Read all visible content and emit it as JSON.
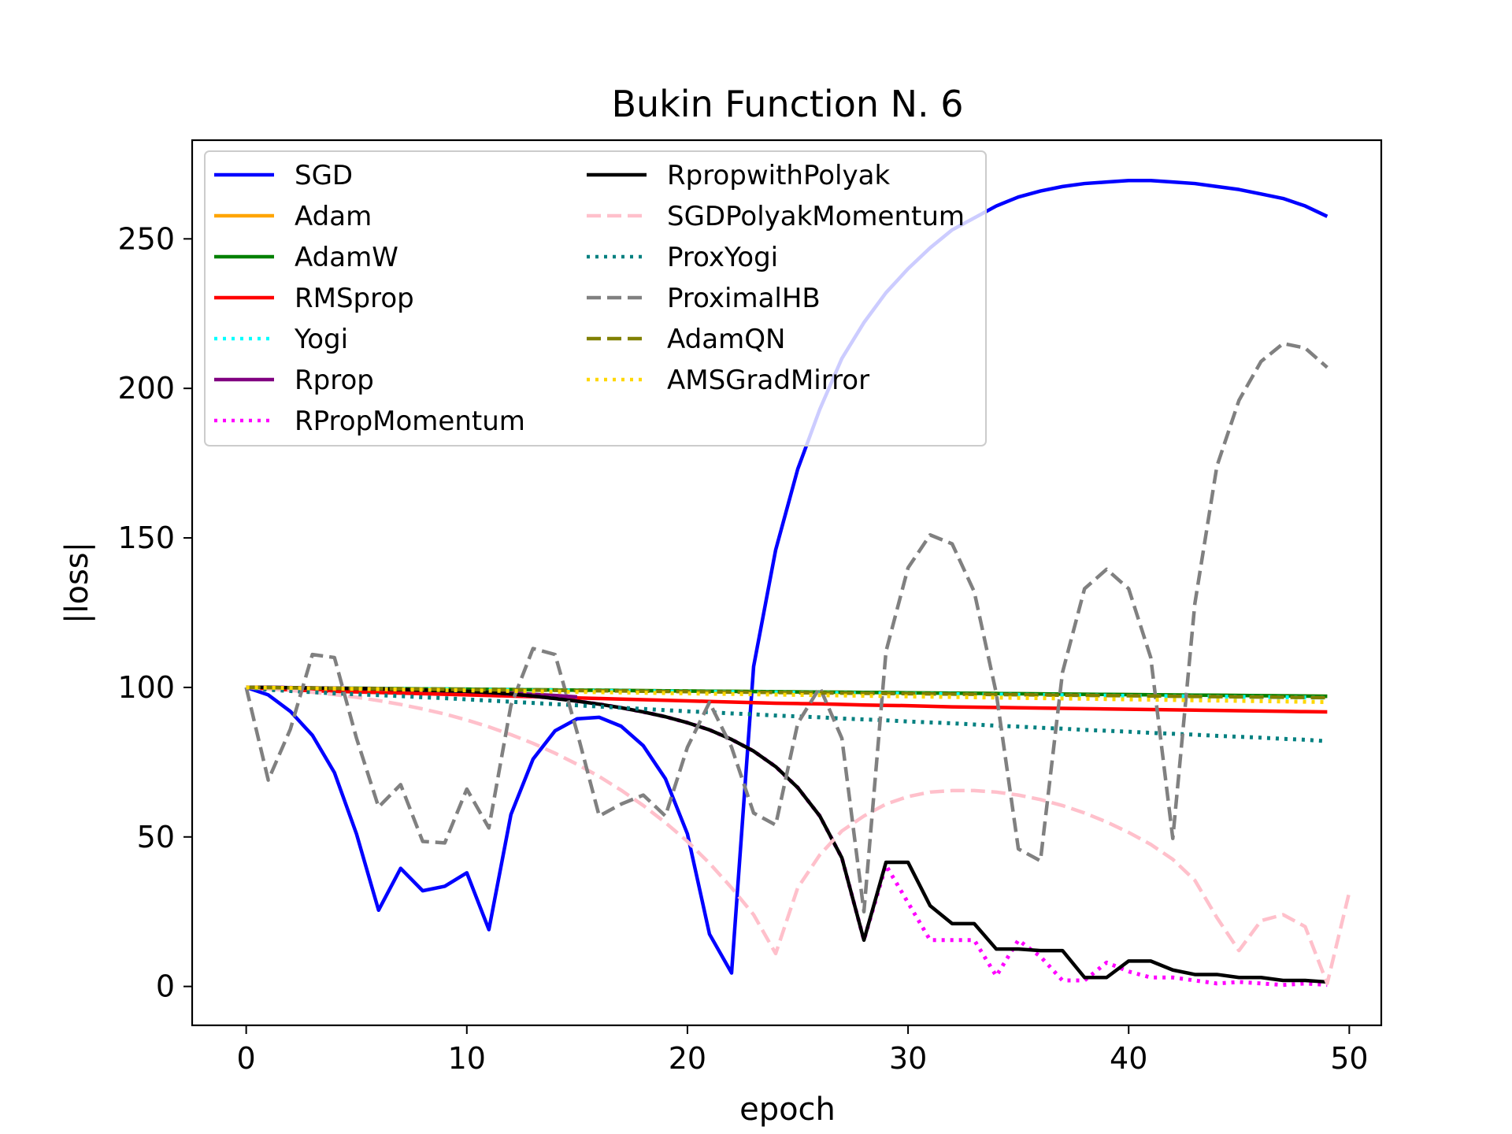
{
  "chart_data": {
    "type": "line",
    "title": "Bukin Function N. 6",
    "xlabel": "epoch",
    "ylabel": "|loss|",
    "xlim": [
      -2.45,
      51.45
    ],
    "ylim": [
      -13,
      283
    ],
    "xticks": [
      0,
      10,
      20,
      30,
      40,
      50
    ],
    "yticks": [
      0,
      50,
      100,
      150,
      200,
      250
    ],
    "grid": false,
    "legend_position": "top-left",
    "legend_columns": 2,
    "series": [
      {
        "name": "SGD",
        "color": "#0000ff",
        "style": "solid",
        "values": [
          100,
          97.5,
          92,
          84,
          71.5,
          51,
          25.5,
          39.5,
          32,
          33.5,
          38,
          19,
          57.5,
          76,
          85.5,
          89.5,
          90,
          87,
          80.5,
          69.5,
          51,
          17.5,
          4.5,
          107,
          146,
          173,
          193,
          210,
          222,
          232,
          240,
          247,
          253,
          257,
          261,
          264,
          266,
          267.5,
          268.5,
          269,
          269.5,
          269.5,
          269,
          268.5,
          267.5,
          266.5,
          265,
          263.5,
          261,
          257.5
        ]
      },
      {
        "name": "Adam",
        "color": "#ffa500",
        "style": "solid",
        "values": [
          100,
          99.94,
          99.88,
          99.82,
          99.76,
          99.7,
          99.64,
          99.58,
          99.52,
          99.46,
          99.4,
          99.34,
          99.28,
          99.22,
          99.16,
          99.1,
          99.04,
          98.98,
          98.92,
          98.86,
          98.8,
          98.74,
          98.68,
          98.62,
          98.56,
          98.5,
          98.44,
          98.38,
          98.32,
          98.26,
          98.2,
          98.14,
          98.08,
          98.02,
          97.96,
          97.9,
          97.84,
          97.78,
          97.72,
          97.66,
          97.6,
          97.54,
          97.48,
          97.42,
          97.36,
          97.3,
          97.24,
          97.18,
          97.12,
          97.06
        ]
      },
      {
        "name": "AdamW",
        "color": "#008000",
        "style": "solid",
        "values": [
          100,
          99.94,
          99.88,
          99.82,
          99.76,
          99.7,
          99.64,
          99.58,
          99.52,
          99.46,
          99.4,
          99.34,
          99.28,
          99.22,
          99.16,
          99.1,
          99.04,
          98.98,
          98.92,
          98.86,
          98.8,
          98.74,
          98.68,
          98.62,
          98.56,
          98.5,
          98.44,
          98.38,
          98.32,
          98.26,
          98.2,
          98.14,
          98.08,
          98.02,
          97.96,
          97.9,
          97.84,
          97.78,
          97.72,
          97.66,
          97.6,
          97.54,
          97.48,
          97.42,
          97.36,
          97.3,
          97.24,
          97.18,
          97.12,
          97.06
        ]
      },
      {
        "name": "RMSprop",
        "color": "#ff0000",
        "style": "solid",
        "values": [
          100,
          99.5,
          99.2,
          98.9,
          98.7,
          98.5,
          98.3,
          98.1,
          97.9,
          97.7,
          97.5,
          97.3,
          97.1,
          96.9,
          96.7,
          96.5,
          96.3,
          96.1,
          95.9,
          95.7,
          95.5,
          95.3,
          95.1,
          94.9,
          94.7,
          94.6,
          94.5,
          94.3,
          94.1,
          94,
          93.9,
          93.7,
          93.5,
          93.4,
          93.3,
          93.2,
          93.1,
          93,
          92.9,
          92.8,
          92.7,
          92.6,
          92.5,
          92.4,
          92.3,
          92.2,
          92.1,
          92,
          91.9,
          91.8
        ]
      },
      {
        "name": "Yogi",
        "color": "#00ffff",
        "style": "dotted",
        "values": [
          100,
          99.93,
          99.86,
          99.79,
          99.72,
          99.65,
          99.58,
          99.51,
          99.44,
          99.37,
          99.3,
          99.23,
          99.16,
          99.09,
          99.02,
          98.95,
          98.88,
          98.81,
          98.74,
          98.67,
          98.6,
          98.53,
          98.46,
          98.39,
          98.32,
          98.25,
          98.18,
          98.11,
          98.04,
          97.97,
          97.9,
          97.83,
          97.76,
          97.69,
          97.62,
          97.55,
          97.48,
          97.41,
          97.34,
          97.27,
          97.2,
          97.13,
          97.06,
          96.99,
          96.92,
          96.85,
          96.78,
          96.71,
          96.64,
          96.57
        ]
      },
      {
        "name": "Rprop",
        "color": "#800080",
        "style": "solid",
        "values": [
          100,
          100,
          99.9,
          99.8,
          99.7,
          99.6,
          99.5,
          99.3,
          99.1,
          98.9,
          98.7,
          98.4,
          98.1,
          97.7,
          97.3,
          96.8
        ]
      },
      {
        "name": "RPropMomentum",
        "color": "#ff00ff",
        "style": "dotted",
        "values": [
          100,
          100,
          99.9,
          99.8,
          99.7,
          99.6,
          99.5,
          99.3,
          99.1,
          98.9,
          98.7,
          98.3,
          97.8,
          97.1,
          96.3,
          95.4,
          94.4,
          93.2,
          91.8,
          90.2,
          88.2,
          85.8,
          82.6,
          78.7,
          73.5,
          66.5,
          57,
          43,
          15.5,
          40.5,
          28,
          15.5,
          15.5,
          15.5,
          3.5,
          15.5,
          10,
          2,
          2,
          8,
          5,
          3,
          3,
          2,
          1,
          1.5,
          1,
          0.5,
          1,
          0.5
        ]
      },
      {
        "name": "RpropwithPolyak",
        "color": "#000000",
        "style": "solid",
        "values": [
          100,
          100,
          99.9,
          99.8,
          99.7,
          99.6,
          99.5,
          99.3,
          99.1,
          98.9,
          98.7,
          98.3,
          97.8,
          97.1,
          96.3,
          95.4,
          94.4,
          93.2,
          91.8,
          90.2,
          88.2,
          85.8,
          82.6,
          78.7,
          73.5,
          66.5,
          57,
          43,
          15.5,
          41.5,
          41.5,
          27,
          21,
          21,
          12.5,
          12.5,
          12,
          12,
          3,
          3,
          8.5,
          8.5,
          5.5,
          4,
          4,
          3,
          3,
          2,
          2,
          1.5
        ]
      },
      {
        "name": "SGDPolyakMomentum",
        "color": "#ffc0cb",
        "style": "dashed",
        "values": [
          100,
          99.5,
          99,
          98.4,
          97.6,
          96.7,
          95.6,
          94.3,
          92.8,
          91.1,
          89.1,
          86.8,
          84.2,
          81.3,
          78,
          74.3,
          70.2,
          65.6,
          60.5,
          54.8,
          48.5,
          41.2,
          33,
          24,
          11,
          33,
          44,
          52,
          57,
          61,
          63.5,
          65,
          65.5,
          65.5,
          65,
          64,
          62.5,
          60.5,
          58,
          55,
          51.5,
          47.5,
          42.5,
          35.5,
          23,
          12,
          22,
          24,
          20,
          1,
          31.5
        ]
      },
      {
        "name": "ProxYogi",
        "color": "#008080",
        "style": "dotted",
        "values": [
          100,
          99.2,
          98.8,
          98.4,
          98,
          97.7,
          97.4,
          97.1,
          96.7,
          96.4,
          96,
          95.6,
          95.2,
          94.8,
          94.4,
          94,
          93.6,
          93.2,
          92.8,
          92.4,
          92,
          91.7,
          91.3,
          91,
          90.6,
          90.3,
          90,
          89.6,
          89.3,
          89,
          88.6,
          88.3,
          88,
          87.6,
          87.2,
          86.9,
          86.5,
          86.2,
          85.8,
          85.5,
          85.2,
          84.8,
          84.5,
          84.2,
          83.8,
          83.5,
          83.2,
          82.8,
          82.5,
          82
        ]
      },
      {
        "name": "ProximalHB",
        "color": "#808080",
        "style": "dashed",
        "values": [
          100,
          69,
          86,
          111,
          110,
          83,
          60,
          67.5,
          48.5,
          48,
          66,
          53,
          94,
          113,
          111,
          85,
          57,
          61,
          64,
          57,
          80,
          95,
          80,
          58,
          54,
          88,
          100,
          83,
          25,
          112,
          140,
          151,
          148,
          132,
          98,
          46,
          42,
          105,
          133,
          139.5,
          133,
          110,
          49.5,
          128,
          174,
          196,
          209,
          215,
          213.5,
          207
        ]
      },
      {
        "name": "AdamQN",
        "color": "#808000",
        "style": "dashed",
        "values": [
          100,
          99.93,
          99.86,
          99.79,
          99.72,
          99.65,
          99.58,
          99.51,
          99.44,
          99.37,
          99.3,
          99.23,
          99.16,
          99.09,
          99.02,
          98.95,
          98.88,
          98.81,
          98.74,
          98.67,
          98.6,
          98.53,
          98.46,
          98.39,
          98.32,
          98.25,
          98.18,
          98.11,
          98.04,
          97.97,
          97.9,
          97.83,
          97.76,
          97.69,
          97.62,
          97.55,
          97.48,
          97.41,
          97.34,
          97.27,
          97.2,
          97.13,
          97.06,
          96.99,
          96.92,
          96.85,
          96.78,
          96.71,
          96.64,
          96.57
        ]
      },
      {
        "name": "AMSGradMirror",
        "color": "#ffd700",
        "style": "dotted",
        "values": [
          100,
          99.9,
          99.8,
          99.7,
          99.6,
          99.5,
          99.4,
          99.3,
          99.2,
          99.1,
          99,
          98.9,
          98.8,
          98.7,
          98.6,
          98.5,
          98.4,
          98.3,
          98.2,
          98.1,
          98,
          97.9,
          97.8,
          97.7,
          97.6,
          97.5,
          97.4,
          97.3,
          97.2,
          97.1,
          97,
          96.9,
          96.8,
          96.7,
          96.6,
          96.5,
          96.4,
          96.3,
          96.2,
          96.1,
          96,
          95.9,
          95.8,
          95.7,
          95.6,
          95.5,
          95.4,
          95.3,
          95.2,
          95.1
        ]
      }
    ]
  }
}
